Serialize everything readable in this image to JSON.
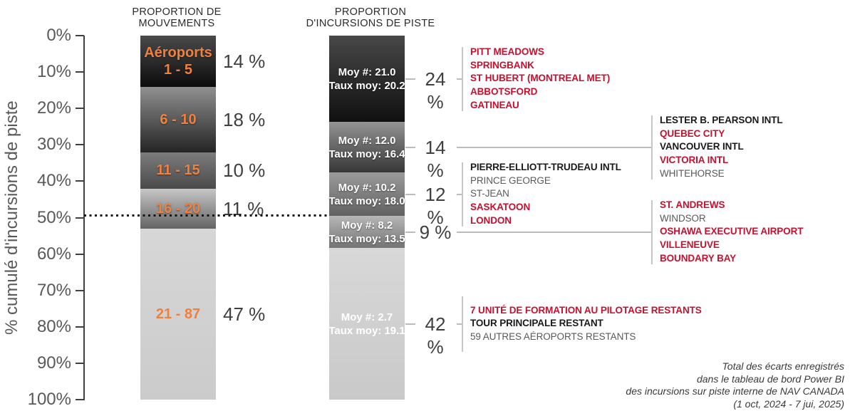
{
  "y_axis": {
    "title": "% cumulé d'incursions de piste",
    "ticks": [
      "0%",
      "10%",
      "20%",
      "30%",
      "40%",
      "50%",
      "60%",
      "70%",
      "80%",
      "90%",
      "100%"
    ]
  },
  "chart_data": {
    "type": "bar",
    "subtype": "paired-stacked-pareto",
    "title": "",
    "ylabel": "% cumulé d'incursions de piste",
    "ylim": [
      0,
      100
    ],
    "reference_line_pct": 50,
    "bars": [
      {
        "title_lines": [
          "PROPORTION DE",
          "MOUVEMENTS"
        ],
        "segments": [
          {
            "label_lines": [
              "Aéroports",
              "1 - 5"
            ],
            "value_pct": 14,
            "pct_label": "14 %"
          },
          {
            "label_lines": [
              "6 - 10"
            ],
            "value_pct": 18,
            "pct_label": "18 %"
          },
          {
            "label_lines": [
              "11 - 15"
            ],
            "value_pct": 10,
            "pct_label": "10 %"
          },
          {
            "label_lines": [
              "16 - 20"
            ],
            "value_pct": 11,
            "pct_label": "11 %"
          },
          {
            "label_lines": [
              "21 - 87"
            ],
            "value_pct": 47,
            "pct_label": "47 %"
          }
        ]
      },
      {
        "title_lines": [
          "PROPORTION",
          "D'INCURSIONS DE PISTE"
        ],
        "segments": [
          {
            "label_lines": [
              "Moy #: 21.0",
              "Taux moy: 20.2"
            ],
            "value_pct": 24,
            "pct_label": "24 %",
            "list_side": "near",
            "airports": [
              {
                "name": "PITT MEADOWS",
                "style": "red"
              },
              {
                "name": "SPRINGBANK",
                "style": "red"
              },
              {
                "name": "ST HUBERT (MONTREAL MET)",
                "style": "red"
              },
              {
                "name": "ABBOTSFORD",
                "style": "red"
              },
              {
                "name": "GATINEAU",
                "style": "red"
              }
            ]
          },
          {
            "label_lines": [
              "Moy #: 12.0",
              "Taux moy: 16.4"
            ],
            "value_pct": 14,
            "pct_label": "14 %",
            "list_side": "far",
            "airports": [
              {
                "name": "LESTER B. PEARSON INTL",
                "style": "bold"
              },
              {
                "name": "QUEBEC CITY",
                "style": "red"
              },
              {
                "name": "VANCOUVER INTL",
                "style": "bold"
              },
              {
                "name": "VICTORIA INTL",
                "style": "red"
              },
              {
                "name": "WHITEHORSE",
                "style": "gray"
              }
            ]
          },
          {
            "label_lines": [
              "Moy #: 10.2",
              "Taux moy: 18.0"
            ],
            "value_pct": 12,
            "pct_label": "12 %",
            "list_side": "near",
            "airports": [
              {
                "name": "PIERRE-ELLIOTT-TRUDEAU INTL",
                "style": "bold"
              },
              {
                "name": "PRINCE GEORGE",
                "style": "gray"
              },
              {
                "name": "ST-JEAN",
                "style": "gray"
              },
              {
                "name": "SASKATOON",
                "style": "red"
              },
              {
                "name": "LONDON",
                "style": "red"
              }
            ]
          },
          {
            "label_lines": [
              "Moy #: 8.2",
              "Taux moy: 13.5"
            ],
            "value_pct": 9,
            "pct_label": "9 %",
            "list_side": "far",
            "airports": [
              {
                "name": "ST. ANDREWS",
                "style": "red"
              },
              {
                "name": "WINDSOR",
                "style": "gray"
              },
              {
                "name": "OSHAWA EXECUTIVE AIRPORT",
                "style": "red"
              },
              {
                "name": "VILLENEUVE",
                "style": "red"
              },
              {
                "name": "BOUNDARY BAY",
                "style": "red"
              }
            ]
          },
          {
            "label_lines": [
              "Moy #: 2.7",
              "Taux moy: 19.1"
            ],
            "value_pct": 42,
            "pct_label": "42 %",
            "list_side": "near",
            "airports": [
              {
                "name": "7 UNITÉ DE FORMATION AU PILOTAGE RESTANTS",
                "style": "red"
              },
              {
                "name": "TOUR PRINCIPALE RESTANT",
                "style": "bold"
              },
              {
                "name": "59 AUTRES AÉROPORTS RESTANTS",
                "style": "gray"
              }
            ]
          }
        ]
      }
    ]
  },
  "footnote": {
    "lines": [
      "Total des écarts enregistrés",
      "dans le tableau de bord Power BI",
      "des incursions sur piste interne de NAV CANADA",
      "(1 oct, 2024 - 7 jui, 2025)"
    ]
  },
  "colors": {
    "orange_label": "#EE8040",
    "red_airport": "#C8102E",
    "dark_airport": "#1a1a1a",
    "gray_airport": "#595959",
    "axis_text": "#595959",
    "connector": "#bcbcbc"
  }
}
